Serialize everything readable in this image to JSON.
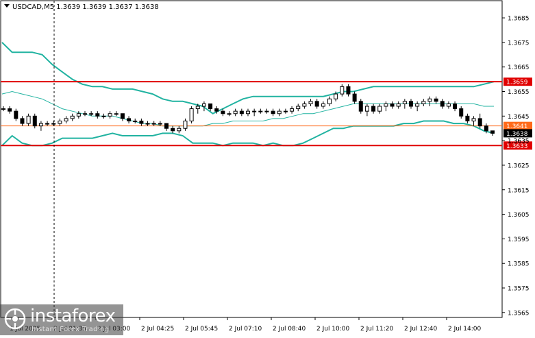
{
  "colors": {
    "background": "#ffffff",
    "frame": "#000000",
    "grid": "#d9d9d9",
    "candle": "#000000",
    "band": "#21b3a1",
    "middle": "#21b3a1",
    "resistance": "#e00000",
    "support": "#e00000",
    "pivot": "#ff6a1a",
    "last_price_bg": "#000000"
  },
  "chart_data": {
    "type": "candlestick",
    "title": "USDCAD,M5 1.3639 1.3639 1.3637 1.3638",
    "symbol": "USDCAD,M5",
    "ohlc_header": "1.3639 1.3639 1.3637 1.3638",
    "ylim": [
      1.3563,
      1.3692
    ],
    "y_ticks": [
      "1.3685",
      "1.3675",
      "1.3665",
      "1.3655",
      "1.3645",
      "1.3635",
      "1.3625",
      "1.3615",
      "1.3605",
      "1.3595",
      "1.3585",
      "1.3575",
      "1.3565"
    ],
    "x_ticks": [
      "1 Jul 2025",
      "2 Jul 01:35",
      "2 Jul 03:00",
      "2 Jul 04:25",
      "2 Jul 05:45",
      "2 Jul 07:10",
      "2 Jul 08:40",
      "2 Jul 10:00",
      "2 Jul 11:20",
      "2 Jul 12:40",
      "2 Jul 14:00"
    ],
    "grid": true,
    "levels": [
      {
        "name": "resistance",
        "value": 1.3659,
        "label": "1.3659"
      },
      {
        "name": "pivot",
        "value": 1.3641,
        "label": "1.3641"
      },
      {
        "name": "support",
        "value": 1.3633,
        "label": "1.3633"
      }
    ],
    "last_price": {
      "value": 1.3638,
      "label": "1.3638"
    },
    "extra_label": "1.3635",
    "bands": {
      "upper": [
        1.3675,
        1.3671,
        1.3671,
        1.3671,
        1.367,
        1.3666,
        1.3663,
        1.366,
        1.3658,
        1.3657,
        1.3657,
        1.3656,
        1.3656,
        1.3656,
        1.3655,
        1.3654,
        1.3652,
        1.3651,
        1.3651,
        1.365,
        1.3649,
        1.3646,
        1.3648,
        1.365,
        1.3652,
        1.3653,
        1.3653,
        1.3653,
        1.3653,
        1.3653,
        1.3653,
        1.3653,
        1.3653,
        1.3654,
        1.3655,
        1.3655,
        1.3656,
        1.3657,
        1.3657,
        1.3657,
        1.3657,
        1.3657,
        1.3657,
        1.3657,
        1.3657,
        1.3657,
        1.3657,
        1.3657,
        1.3658,
        1.3659
      ],
      "middle": [
        1.3654,
        1.3655,
        1.3654,
        1.3653,
        1.3652,
        1.365,
        1.3648,
        1.3647,
        1.3646,
        1.3645,
        1.3645,
        1.3645,
        1.3644,
        1.3643,
        1.3642,
        1.3642,
        1.3641,
        1.3641,
        1.3641,
        1.3641,
        1.3641,
        1.3642,
        1.3642,
        1.3643,
        1.3643,
        1.3643,
        1.3643,
        1.3644,
        1.3644,
        1.3645,
        1.3646,
        1.3646,
        1.3647,
        1.3648,
        1.3649,
        1.365,
        1.365,
        1.365,
        1.365,
        1.365,
        1.365,
        1.365,
        1.365,
        1.365,
        1.365,
        1.365,
        1.365,
        1.365,
        1.3649,
        1.3649
      ],
      "lower": [
        1.3633,
        1.3637,
        1.3634,
        1.3633,
        1.3633,
        1.3634,
        1.3636,
        1.3636,
        1.3636,
        1.3636,
        1.3637,
        1.3638,
        1.3637,
        1.3637,
        1.3637,
        1.3637,
        1.3638,
        1.3638,
        1.3637,
        1.3634,
        1.3634,
        1.3634,
        1.3633,
        1.3634,
        1.3634,
        1.3634,
        1.3633,
        1.3634,
        1.3633,
        1.3633,
        1.3634,
        1.3636,
        1.3638,
        1.364,
        1.364,
        1.3641,
        1.3641,
        1.3641,
        1.3641,
        1.3641,
        1.3642,
        1.3642,
        1.3643,
        1.3643,
        1.3643,
        1.3642,
        1.3642,
        1.3641,
        1.3639,
        1.3638
      ]
    },
    "candles": [
      [
        1.3648,
        1.3649,
        1.3647,
        1.3648
      ],
      [
        1.3648,
        1.3649,
        1.3646,
        1.3647
      ],
      [
        1.3647,
        1.3648,
        1.3643,
        1.3644
      ],
      [
        1.3644,
        1.3645,
        1.3641,
        1.3642
      ],
      [
        1.3642,
        1.3646,
        1.3641,
        1.3645
      ],
      [
        1.3645,
        1.3646,
        1.364,
        1.3641
      ],
      [
        1.3641,
        1.3643,
        1.3639,
        1.3642
      ],
      [
        1.3642,
        1.3643,
        1.3641,
        1.3642
      ],
      [
        1.3642,
        1.3643,
        1.3641,
        1.3642
      ],
      [
        1.3642,
        1.3644,
        1.3641,
        1.3643
      ],
      [
        1.3643,
        1.3645,
        1.3642,
        1.3644
      ],
      [
        1.3644,
        1.3646,
        1.3643,
        1.3645
      ],
      [
        1.3645,
        1.3647,
        1.3644,
        1.3646
      ],
      [
        1.3646,
        1.3647,
        1.3645,
        1.3646
      ],
      [
        1.3646,
        1.3647,
        1.3645,
        1.3646
      ],
      [
        1.3646,
        1.3647,
        1.3644,
        1.3645
      ],
      [
        1.3645,
        1.3646,
        1.3644,
        1.3645
      ],
      [
        1.3645,
        1.3647,
        1.3644,
        1.3646
      ],
      [
        1.3646,
        1.3647,
        1.3645,
        1.3646
      ],
      [
        1.3646,
        1.3646,
        1.3643,
        1.3644
      ],
      [
        1.3644,
        1.3645,
        1.3642,
        1.3643
      ],
      [
        1.3643,
        1.3644,
        1.3642,
        1.3643
      ],
      [
        1.3643,
        1.3644,
        1.3641,
        1.3642
      ],
      [
        1.3642,
        1.3643,
        1.3641,
        1.3642
      ],
      [
        1.3642,
        1.3643,
        1.3641,
        1.3642
      ],
      [
        1.3642,
        1.3643,
        1.3641,
        1.3642
      ],
      [
        1.3642,
        1.3642,
        1.3639,
        1.364
      ],
      [
        1.364,
        1.3641,
        1.3638,
        1.3639
      ],
      [
        1.3639,
        1.3641,
        1.3638,
        1.364
      ],
      [
        1.364,
        1.3644,
        1.3639,
        1.3643
      ],
      [
        1.3643,
        1.3649,
        1.3642,
        1.3648
      ],
      [
        1.3648,
        1.365,
        1.3646,
        1.3649
      ],
      [
        1.3649,
        1.3651,
        1.3647,
        1.365
      ],
      [
        1.365,
        1.365,
        1.3647,
        1.3648
      ],
      [
        1.3648,
        1.3649,
        1.3646,
        1.3647
      ],
      [
        1.3647,
        1.3648,
        1.3645,
        1.3646
      ],
      [
        1.3646,
        1.3647,
        1.3645,
        1.3646
      ],
      [
        1.3646,
        1.3648,
        1.3645,
        1.3647
      ],
      [
        1.3647,
        1.3648,
        1.3645,
        1.3646
      ],
      [
        1.3646,
        1.3648,
        1.3645,
        1.3647
      ],
      [
        1.3647,
        1.3648,
        1.3645,
        1.3647
      ],
      [
        1.3647,
        1.3648,
        1.3646,
        1.3647
      ],
      [
        1.3647,
        1.3648,
        1.3646,
        1.3647
      ],
      [
        1.3647,
        1.3648,
        1.3645,
        1.3646
      ],
      [
        1.3646,
        1.3648,
        1.3645,
        1.3647
      ],
      [
        1.3647,
        1.3648,
        1.3646,
        1.3647
      ],
      [
        1.3647,
        1.3649,
        1.3646,
        1.3648
      ],
      [
        1.3648,
        1.365,
        1.3647,
        1.3649
      ],
      [
        1.3649,
        1.3651,
        1.3648,
        1.365
      ],
      [
        1.365,
        1.3652,
        1.3649,
        1.3651
      ],
      [
        1.3651,
        1.3652,
        1.3648,
        1.3649
      ],
      [
        1.3649,
        1.3651,
        1.3648,
        1.365
      ],
      [
        1.365,
        1.3653,
        1.3649,
        1.3652
      ],
      [
        1.3652,
        1.3655,
        1.3651,
        1.3654
      ],
      [
        1.3654,
        1.3658,
        1.3653,
        1.3657
      ],
      [
        1.3657,
        1.3658,
        1.3653,
        1.3654
      ],
      [
        1.3654,
        1.3655,
        1.365,
        1.3651
      ],
      [
        1.3651,
        1.3652,
        1.3646,
        1.3647
      ],
      [
        1.3647,
        1.365,
        1.3645,
        1.3649
      ],
      [
        1.3649,
        1.365,
        1.3646,
        1.3647
      ],
      [
        1.3647,
        1.365,
        1.3646,
        1.3649
      ],
      [
        1.3649,
        1.3651,
        1.3647,
        1.365
      ],
      [
        1.365,
        1.3651,
        1.3648,
        1.3649
      ],
      [
        1.3649,
        1.3651,
        1.3648,
        1.365
      ],
      [
        1.365,
        1.3652,
        1.3648,
        1.3651
      ],
      [
        1.3651,
        1.3652,
        1.3648,
        1.3649
      ],
      [
        1.3649,
        1.3651,
        1.3647,
        1.365
      ],
      [
        1.365,
        1.3652,
        1.3649,
        1.3651
      ],
      [
        1.3651,
        1.3653,
        1.3649,
        1.3652
      ],
      [
        1.3652,
        1.3653,
        1.365,
        1.3651
      ],
      [
        1.3651,
        1.3652,
        1.3648,
        1.3649
      ],
      [
        1.3649,
        1.3651,
        1.3648,
        1.365
      ],
      [
        1.365,
        1.3651,
        1.3647,
        1.3648
      ],
      [
        1.3648,
        1.3649,
        1.3644,
        1.3645
      ],
      [
        1.3645,
        1.3646,
        1.3642,
        1.3643
      ],
      [
        1.3643,
        1.3645,
        1.3641,
        1.3644
      ],
      [
        1.3644,
        1.3646,
        1.364,
        1.3641
      ],
      [
        1.3641,
        1.3642,
        1.3638,
        1.3639
      ],
      [
        1.3639,
        1.3639,
        1.3637,
        1.3638
      ]
    ]
  },
  "watermark": {
    "name": "instaforex",
    "tagline": "Instant Forex Trading"
  }
}
